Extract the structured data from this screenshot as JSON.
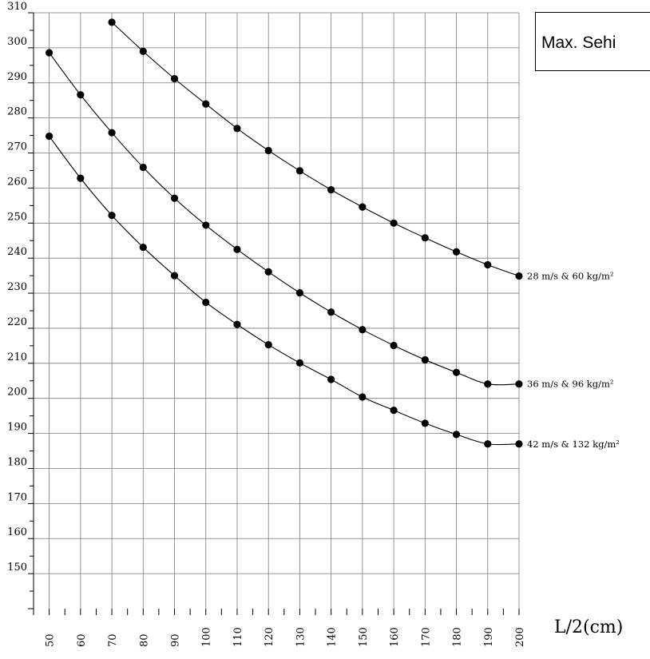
{
  "chart_data": {
    "type": "line",
    "xlabel": "L/2(cm)",
    "legend_text": "Max. Sehi",
    "xlim": [
      45,
      200
    ],
    "ylim": [
      140,
      310
    ],
    "x_ticks": [
      50,
      60,
      70,
      80,
      90,
      100,
      110,
      120,
      130,
      140,
      150,
      160,
      170,
      180,
      190,
      200
    ],
    "y_ticks": [
      150,
      160,
      170,
      180,
      190,
      200,
      210,
      220,
      230,
      240,
      250,
      260,
      270,
      280,
      290,
      300,
      310
    ],
    "grid": true,
    "series": [
      {
        "name": "28 m/s  & 60 kg/m²",
        "x": [
          70,
          80,
          90,
          100,
          110,
          120,
          130,
          140,
          150,
          160,
          170,
          180,
          190,
          200
        ],
        "values": [
          307.3,
          299,
          291.2,
          284,
          277,
          270.7,
          264.9,
          259.5,
          254.6,
          250,
          245.8,
          241.8,
          238.1,
          234.9
        ]
      },
      {
        "name": "36 m/s  & 96 kg/m²",
        "x": [
          50,
          60,
          70,
          80,
          90,
          100,
          110,
          120,
          130,
          140,
          150,
          160,
          170,
          180,
          190,
          200
        ],
        "values": [
          298.6,
          286.6,
          275.8,
          265.9,
          257.1,
          249.4,
          242.5,
          236.1,
          230.1,
          224.6,
          219.6,
          215.1,
          211,
          207.4,
          204.1,
          204.1
        ]
      },
      {
        "name": "42 m/s  & 132 kg/m²",
        "x": [
          50,
          60,
          70,
          80,
          90,
          100,
          110,
          120,
          130,
          140,
          150,
          160,
          170,
          180,
          190,
          200
        ],
        "values": [
          274.8,
          262.8,
          252.2,
          243.1,
          235,
          227.4,
          221.1,
          215.3,
          210.1,
          205.4,
          200.4,
          196.6,
          192.9,
          189.7,
          187,
          187
        ]
      }
    ]
  }
}
